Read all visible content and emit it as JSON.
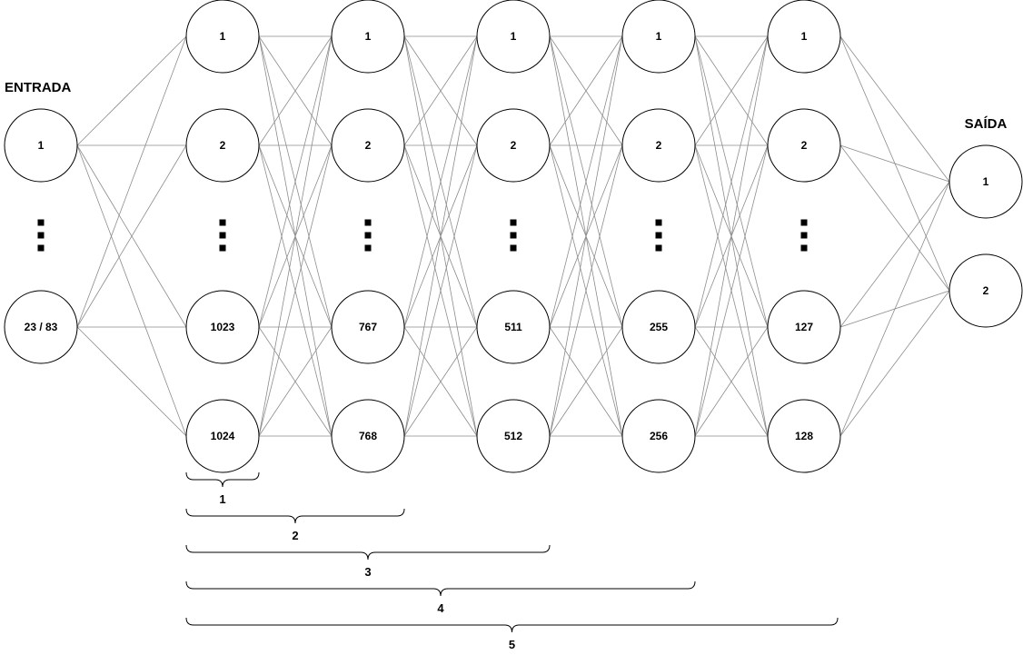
{
  "diagram": {
    "input_title": "ENTRADA",
    "output_title": "SAÍDA",
    "layers": [
      {
        "name": "input",
        "nodes": [
          "1",
          "23 / 83"
        ],
        "ellipsis": true
      },
      {
        "name": "hidden-1",
        "nodes": [
          "1",
          "2",
          "1023",
          "1024"
        ],
        "ellipsis": true
      },
      {
        "name": "hidden-2",
        "nodes": [
          "1",
          "2",
          "767",
          "768"
        ],
        "ellipsis": true
      },
      {
        "name": "hidden-3",
        "nodes": [
          "1",
          "2",
          "511",
          "512"
        ],
        "ellipsis": true
      },
      {
        "name": "hidden-4",
        "nodes": [
          "1",
          "2",
          "255",
          "256"
        ],
        "ellipsis": true
      },
      {
        "name": "hidden-5",
        "nodes": [
          "1",
          "2",
          "127",
          "128"
        ],
        "ellipsis": true
      },
      {
        "name": "output",
        "nodes": [
          "1",
          "2"
        ],
        "ellipsis": false
      }
    ],
    "braces": [
      {
        "label": "1",
        "span_layers": 1
      },
      {
        "label": "2",
        "span_layers": 2
      },
      {
        "label": "3",
        "span_layers": 3
      },
      {
        "label": "4",
        "span_layers": 4
      },
      {
        "label": "5",
        "span_layers": 5
      }
    ]
  }
}
